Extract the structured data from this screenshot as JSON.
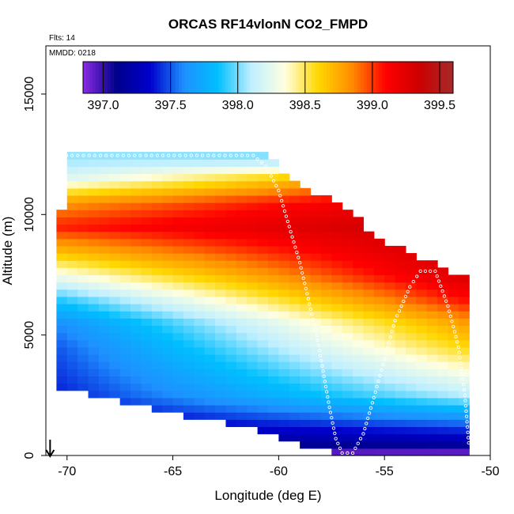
{
  "chart_data": {
    "type": "heatmap",
    "title": "ORCAS RF14vlonN CO2_FMPD",
    "annotations": {
      "flights": "Flts: 14",
      "date": "MMDD: 0218"
    },
    "xlabel": "Longitude (deg E)",
    "ylabel": "Altitude (m)",
    "xlim": [
      -71,
      -50
    ],
    "ylim": [
      0,
      17000
    ],
    "x_ticks": [
      -70,
      -65,
      -60,
      -55,
      -50
    ],
    "x_tick_labels": [
      "-70",
      "-65",
      "-60",
      "-55",
      "-50"
    ],
    "y_ticks": [
      0,
      5000,
      10000,
      15000
    ],
    "y_tick_labels": [
      "0",
      "5000",
      "10000",
      "15000"
    ],
    "grid": false,
    "colorbar": {
      "placement": "top",
      "range": [
        396.85,
        399.6
      ],
      "ticks": [
        397.0,
        397.5,
        398.0,
        398.5,
        399.0,
        399.5
      ],
      "tick_labels": [
        "397.0",
        "397.5",
        "398.0",
        "398.5",
        "399.0",
        "399.5"
      ],
      "colors": [
        "#8a2be2",
        "#00008b",
        "#0000cd",
        "#1e90ff",
        "#00bfff",
        "#bfefff",
        "#ffffe0",
        "#ffd700",
        "#ff8c00",
        "#ff0000",
        "#cd0000",
        "#a52a2a"
      ]
    },
    "value_field_description_free": true,
    "domain_profile": [
      {
        "lon": -70.5,
        "alt_min": 2900,
        "alt_max": 7700
      },
      {
        "lon": -70.0,
        "alt_min": 2800,
        "alt_max": 12600
      },
      {
        "lon": -68.0,
        "alt_min": 2400,
        "alt_max": 12600
      },
      {
        "lon": -66.0,
        "alt_min": 1900,
        "alt_max": 12500
      },
      {
        "lon": -64.0,
        "alt_min": 1600,
        "alt_max": 12500
      },
      {
        "lon": -61.0,
        "alt_min": 1100,
        "alt_max": 12500
      },
      {
        "lon": -59.0,
        "alt_min": 500,
        "alt_max": 11200
      },
      {
        "lon": -57.0,
        "alt_min": 0,
        "alt_max": 10100
      },
      {
        "lon": -55.0,
        "alt_min": 0,
        "alt_max": 8800
      },
      {
        "lon": -53.0,
        "alt_min": 0,
        "alt_max": 7900
      },
      {
        "lon": -51.0,
        "alt_min": 0,
        "alt_max": 7200
      }
    ],
    "layers": [
      {
        "alt": 12300,
        "value_west": 398.05,
        "value_east": 398.0
      },
      {
        "alt": 11500,
        "value_west": 398.2,
        "value_east": 399.0
      },
      {
        "alt": 10500,
        "value_west": 398.8,
        "value_east": 399.3
      },
      {
        "alt": 9500,
        "value_west": 399.05,
        "value_east": 399.4
      },
      {
        "alt": 8500,
        "value_west": 398.7,
        "value_east": 399.35
      },
      {
        "alt": 7500,
        "value_west": 398.3,
        "value_east": 399.3
      },
      {
        "alt": 6500,
        "value_west": 397.9,
        "value_east": 399.1
      },
      {
        "alt": 5500,
        "value_west": 397.6,
        "value_east": 398.8
      },
      {
        "alt": 4500,
        "value_west": 397.5,
        "value_east": 398.6
      },
      {
        "alt": 3500,
        "value_west": 397.45,
        "value_east": 398.35
      },
      {
        "alt": 2500,
        "value_west": 397.4,
        "value_east": 398.1
      },
      {
        "alt": 1500,
        "value_west": 397.3,
        "value_east": 397.6
      },
      {
        "alt": 500,
        "value_west": 397.1,
        "value_east": 397.2
      },
      {
        "alt": 100,
        "value_west": 396.95,
        "value_east": 396.9
      }
    ],
    "flight_track": [
      {
        "lon": -70.3,
        "alt": 12450
      },
      {
        "lon": -66,
        "alt": 12450
      },
      {
        "lon": -61.2,
        "alt": 12450
      },
      {
        "lon": -60.6,
        "alt": 12000
      },
      {
        "lon": -60.0,
        "alt": 11000
      },
      {
        "lon": -59.5,
        "alt": 9500
      },
      {
        "lon": -59.0,
        "alt": 8000
      },
      {
        "lon": -58.6,
        "alt": 6500
      },
      {
        "lon": -58.2,
        "alt": 5000
      },
      {
        "lon": -57.9,
        "alt": 3500
      },
      {
        "lon": -57.6,
        "alt": 2000
      },
      {
        "lon": -57.3,
        "alt": 700
      },
      {
        "lon": -57.0,
        "alt": 100
      },
      {
        "lon": -56.5,
        "alt": 100
      },
      {
        "lon": -56.0,
        "alt": 900
      },
      {
        "lon": -55.5,
        "alt": 2400
      },
      {
        "lon": -55.0,
        "alt": 4000
      },
      {
        "lon": -54.5,
        "alt": 5600
      },
      {
        "lon": -53.8,
        "alt": 7000
      },
      {
        "lon": -53.3,
        "alt": 7650
      },
      {
        "lon": -52.6,
        "alt": 7650
      },
      {
        "lon": -52.0,
        "alt": 6200
      },
      {
        "lon": -51.5,
        "alt": 4500
      },
      {
        "lon": -51.2,
        "alt": 2500
      },
      {
        "lon": -51.0,
        "alt": 300
      }
    ],
    "arrow": {
      "lon": -70.8,
      "direction": "down"
    }
  }
}
